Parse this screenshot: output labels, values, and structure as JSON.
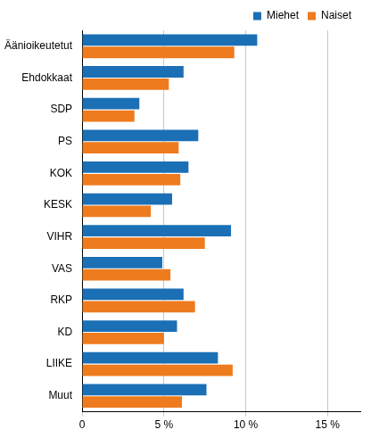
{
  "chart_data": {
    "type": "bar",
    "orientation": "horizontal",
    "categories": [
      "Äänioikeutetut",
      "Ehdokkaat",
      "SDP",
      "PS",
      "KOK",
      "KESK",
      "VIHR",
      "VAS",
      "RKP",
      "KD",
      "LIIKE",
      "Muut"
    ],
    "series": [
      {
        "name": "Miehet",
        "color": "#1b6fb5",
        "values": [
          10.7,
          6.2,
          3.5,
          7.1,
          6.5,
          5.5,
          9.1,
          4.9,
          6.2,
          5.8,
          8.3,
          7.6
        ]
      },
      {
        "name": "Naiset",
        "color": "#ee7b1e",
        "values": [
          9.3,
          5.3,
          3.2,
          5.9,
          6.0,
          4.2,
          7.5,
          5.4,
          6.9,
          5.0,
          9.2,
          6.1
        ]
      }
    ],
    "xlim": [
      0,
      17
    ],
    "xticks": [
      0,
      {
        "value": 5,
        "label": "5 %"
      },
      {
        "value": 10,
        "label": "10 %"
      },
      {
        "value": 15,
        "label": "15 %"
      }
    ],
    "grid": true,
    "legend": "top-right"
  }
}
